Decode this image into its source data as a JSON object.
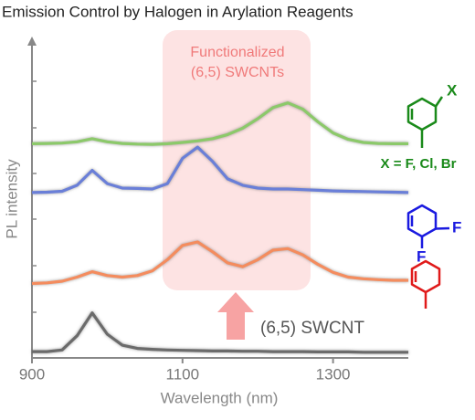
{
  "chart_data": {
    "type": "line",
    "title": "Emission Control by Halogen in Arylation Reagents",
    "xlabel": "Wavelength (nm)",
    "ylabel": "PL intensity",
    "xlim": [
      900,
      1400
    ],
    "xticks": [
      900,
      1100,
      1300
    ],
    "ylim": [
      0,
      10
    ],
    "x": [
      900,
      920,
      940,
      960,
      980,
      1000,
      1020,
      1040,
      1060,
      1080,
      1100,
      1120,
      1140,
      1160,
      1180,
      1200,
      1220,
      1240,
      1260,
      1280,
      1300,
      1320,
      1340,
      1360,
      1380,
      1400
    ],
    "series": [
      {
        "color": "#8cc96a",
        "values": [
          6.76,
          6.77,
          6.78,
          6.82,
          6.92,
          6.82,
          6.77,
          6.75,
          6.74,
          6.76,
          6.8,
          6.85,
          6.92,
          7.05,
          7.25,
          7.55,
          7.9,
          8.05,
          7.85,
          7.45,
          7.1,
          6.9,
          6.8,
          6.77,
          6.76,
          6.76
        ]
      },
      {
        "color": "#6a7fd8",
        "values": [
          5.22,
          5.23,
          5.26,
          5.45,
          5.92,
          5.5,
          5.36,
          5.35,
          5.33,
          5.5,
          6.3,
          6.65,
          6.2,
          5.65,
          5.45,
          5.36,
          5.33,
          5.33,
          5.31,
          5.29,
          5.27,
          5.26,
          5.25,
          5.24,
          5.23,
          5.22
        ]
      },
      {
        "color": "#f48c5e",
        "values": [
          2.35,
          2.37,
          2.42,
          2.55,
          2.72,
          2.6,
          2.55,
          2.6,
          2.75,
          3.1,
          3.55,
          3.66,
          3.35,
          3.0,
          2.88,
          3.1,
          3.4,
          3.45,
          3.25,
          2.95,
          2.7,
          2.55,
          2.5,
          2.47,
          2.45,
          2.45
        ]
      },
      {
        "name": "(6,5) SWCNT",
        "color": "#6b6b6b",
        "values": [
          0.2,
          0.2,
          0.25,
          0.7,
          1.42,
          0.75,
          0.4,
          0.3,
          0.27,
          0.25,
          0.24,
          0.23,
          0.22,
          0.22,
          0.21,
          0.21,
          0.2,
          0.2,
          0.2,
          0.19,
          0.19,
          0.19,
          0.18,
          0.18,
          0.18,
          0.18
        ]
      }
    ],
    "highlight": [
      "Functionalized",
      "(6,5) SWCNTs"
    ],
    "reagents": [
      {
        "atoms": [
          "X"
        ],
        "caption": "X = F, Cl, Br"
      },
      {
        "atoms": [
          "F",
          "F"
        ]
      }
    ]
  }
}
